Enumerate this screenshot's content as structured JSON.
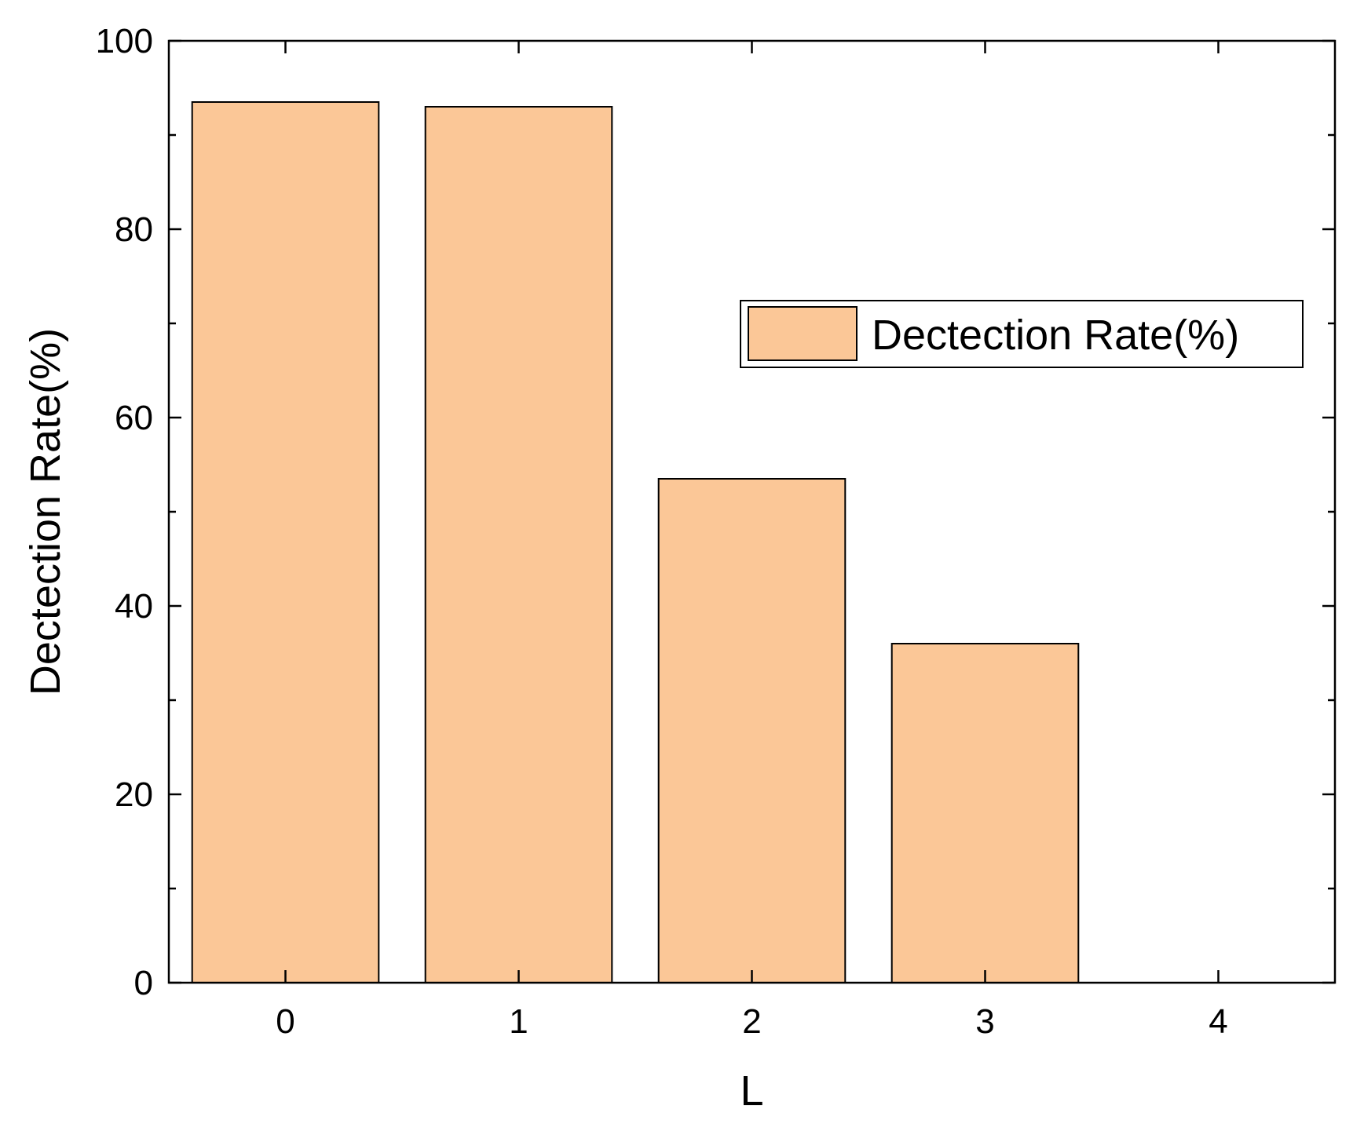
{
  "chart_data": {
    "type": "bar",
    "categories": [
      "0",
      "1",
      "2",
      "3",
      "4"
    ],
    "series": [
      {
        "name": "Dectection Rate(%)",
        "values": [
          93.5,
          93.0,
          53.5,
          36.0,
          0
        ],
        "color": "#FBC797"
      }
    ],
    "xlabel": "L",
    "ylabel": "Dectection Rate(%)",
    "ylim": [
      0,
      100
    ],
    "xlim": [
      -0.5,
      4.5
    ],
    "y_ticks": [
      "0",
      "20",
      "40",
      "60",
      "80",
      "100"
    ],
    "x_ticks": [
      "0",
      "1",
      "2",
      "3",
      "4"
    ],
    "grid": false,
    "legend_position": "center-right",
    "bar_edge_color": "#000000"
  }
}
